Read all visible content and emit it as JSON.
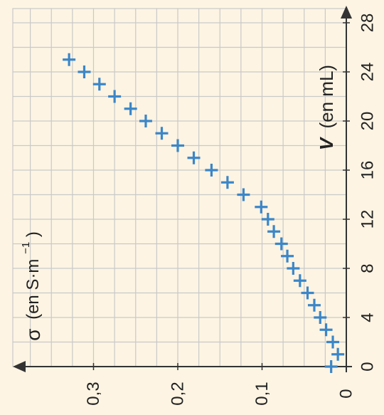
{
  "chart_data": {
    "type": "scatter",
    "orientation": "rotated-90-ccw",
    "x_axis": {
      "label_symbol": "V",
      "label_unit": "(en mL)",
      "range": [
        0,
        29
      ],
      "ticks": [
        0,
        4,
        8,
        12,
        16,
        20,
        24,
        28
      ],
      "tick_labels": [
        "0",
        "4",
        "8",
        "12",
        "16",
        "20",
        "24",
        "28"
      ]
    },
    "y_axis": {
      "label_symbol": "σ",
      "label_unit_prefix": "(en S·m",
      "label_unit_exp": "−1",
      "label_unit_suffix": ")",
      "range": [
        0,
        0.38
      ],
      "ticks": [
        0,
        0.1,
        0.2,
        0.3
      ],
      "tick_labels": [
        "0",
        "0,1",
        "0,2",
        "0,3"
      ]
    },
    "grid": true,
    "marker": "plus",
    "colors": {
      "marker": "#3b86c8",
      "grid": "#c9c9c9",
      "axis": "#333333",
      "background": "#fdf4e3"
    },
    "points": [
      {
        "x": 0,
        "y": 0.018
      },
      {
        "x": 1,
        "y": 0.01
      },
      {
        "x": 2,
        "y": 0.016
      },
      {
        "x": 3,
        "y": 0.024
      },
      {
        "x": 4,
        "y": 0.031
      },
      {
        "x": 5,
        "y": 0.038
      },
      {
        "x": 6,
        "y": 0.046
      },
      {
        "x": 7,
        "y": 0.055
      },
      {
        "x": 8,
        "y": 0.063
      },
      {
        "x": 9,
        "y": 0.07
      },
      {
        "x": 10,
        "y": 0.077
      },
      {
        "x": 11,
        "y": 0.086
      },
      {
        "x": 12,
        "y": 0.093
      },
      {
        "x": 13,
        "y": 0.101
      },
      {
        "x": 14,
        "y": 0.122
      },
      {
        "x": 15,
        "y": 0.141
      },
      {
        "x": 16,
        "y": 0.16
      },
      {
        "x": 17,
        "y": 0.181
      },
      {
        "x": 18,
        "y": 0.2
      },
      {
        "x": 19,
        "y": 0.219
      },
      {
        "x": 20,
        "y": 0.238
      },
      {
        "x": 21,
        "y": 0.256
      },
      {
        "x": 22,
        "y": 0.275
      },
      {
        "x": 23,
        "y": 0.293
      },
      {
        "x": 24,
        "y": 0.311
      },
      {
        "x": 25,
        "y": 0.329
      }
    ]
  }
}
